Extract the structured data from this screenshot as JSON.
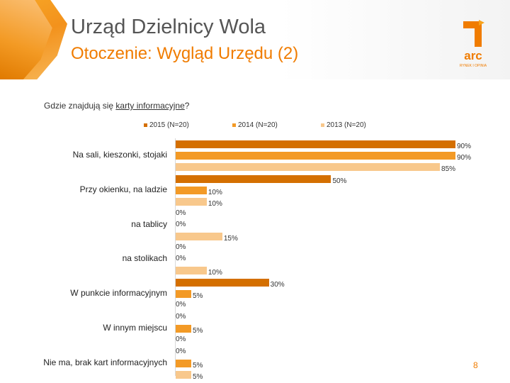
{
  "header": {
    "title": "Urząd Dzielnicy Wola",
    "subtitle": "Otoczenie: Wygląd Urzędu (2)",
    "logo_text": "arc",
    "logo_tagline": "RYNEK I OPINIA"
  },
  "question": {
    "prefix": "Gdzie znajdują się ",
    "underlined": "karty informacyjne",
    "suffix": "?"
  },
  "page_number": "8",
  "colors": {
    "series_2015": "#d46f00",
    "series_2014": "#f39a26",
    "series_2013": "#f8c88c",
    "accent": "#f07c00"
  },
  "chart_data": {
    "type": "bar",
    "orientation": "horizontal",
    "title": "",
    "xlabel": "",
    "ylabel": "",
    "xlim": [
      0,
      100
    ],
    "legend": "top",
    "grid": false,
    "categories": [
      "Na sali, kieszonki, stojaki",
      "Przy okienku, na ladzie",
      "na tablicy",
      "na stolikach",
      "W punkcie informacyjnym",
      "W innym miejscu",
      "Nie ma, brak kart informacyjnych"
    ],
    "series": [
      {
        "name": "2015 (N=20)",
        "values": [
          90,
          50,
          0,
          0,
          30,
          0,
          0
        ]
      },
      {
        "name": "2014 (N=20)",
        "values": [
          90,
          10,
          0,
          0,
          5,
          5,
          5
        ]
      },
      {
        "name": "2013 (N=20)",
        "values": [
          85,
          10,
          15,
          10,
          0,
          0,
          5
        ]
      }
    ],
    "value_suffix": "%"
  }
}
